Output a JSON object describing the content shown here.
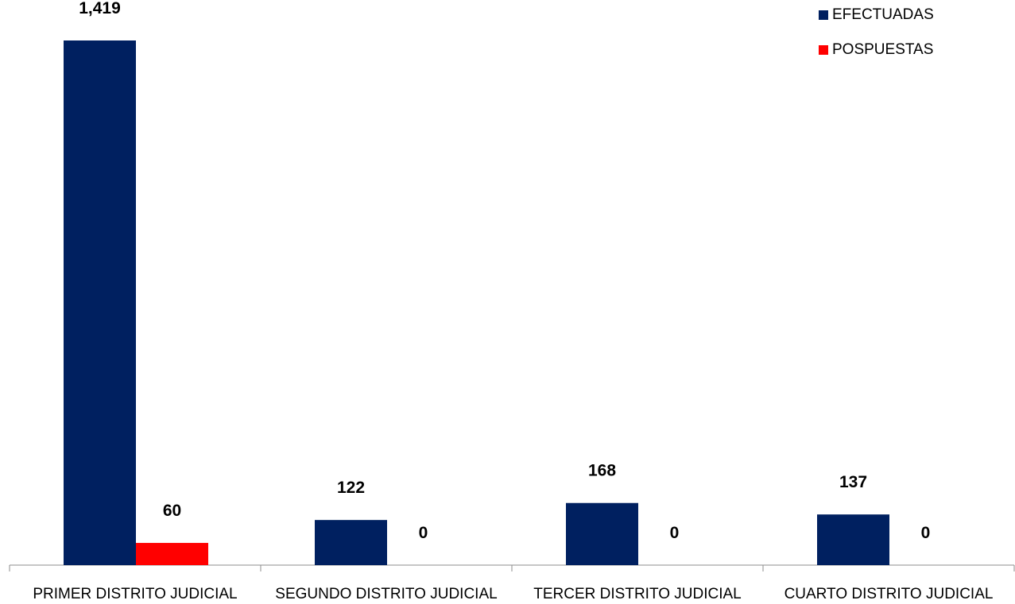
{
  "chart_data": {
    "type": "bar",
    "title": "",
    "xlabel": "",
    "ylabel": "",
    "categories": [
      "PRIMER DISTRITO JUDICIAL",
      "SEGUNDO DISTRITO JUDICIAL",
      "TERCER DISTRITO JUDICIAL",
      "CUARTO DISTRITO JUDICIAL"
    ],
    "series": [
      {
        "name": "EFECTUADAS",
        "color": "#002060",
        "values": [
          1419,
          122,
          168,
          137
        ],
        "labels": [
          "1,419",
          "122",
          "168",
          "137"
        ]
      },
      {
        "name": "POSPUESTAS",
        "color": "#ff0000",
        "values": [
          60,
          0,
          0,
          0
        ],
        "labels": [
          "60",
          "0",
          "0",
          "0"
        ]
      }
    ],
    "ylim": [
      0,
      1419
    ],
    "grid": false,
    "y_axis_visible": false,
    "legend_position": "top-right"
  }
}
